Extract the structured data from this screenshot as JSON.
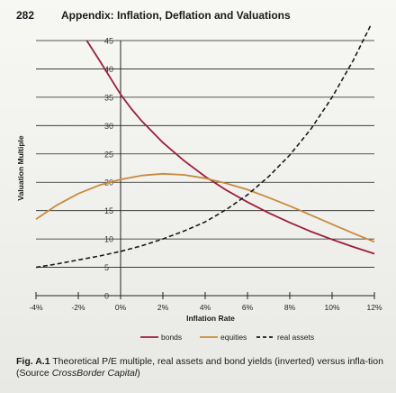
{
  "header": {
    "page_number": "282",
    "running_title": "Appendix: Inflation, Deflation and Valuations"
  },
  "caption": {
    "label": "Fig. A.1",
    "text": "Theoretical P/E multiple, real assets and bond yields (inverted) versus infla-tion (Source ",
    "source_name": "CrossBorder Capital",
    "close": ")"
  },
  "colors": {
    "bonds": "#9b1f3a",
    "equities": "#c98a3c",
    "real_assets": "#1a1a1a",
    "grid": "#222222"
  },
  "chart_data": {
    "type": "line",
    "xlabel": "Inflation Rate",
    "ylabel": "Valuation Multiple",
    "xlim": [
      -4,
      12
    ],
    "ylim": [
      0,
      45
    ],
    "x_ticks": [
      -4,
      -2,
      0,
      2,
      4,
      6,
      8,
      10,
      12
    ],
    "x_tick_labels": [
      "-4%",
      "-2%",
      "0%",
      "2%",
      "4%",
      "6%",
      "8%",
      "10%",
      "12%"
    ],
    "y_ticks": [
      0,
      5,
      10,
      15,
      20,
      25,
      30,
      35,
      40,
      45
    ],
    "y_tick_labels": [
      "0",
      "5",
      "10",
      "15",
      "20",
      "25",
      "30",
      "35",
      "40",
      "45"
    ],
    "grid": "horizontal",
    "legend_position": "bottom",
    "series": [
      {
        "name": "bonds",
        "style": "solid",
        "x": [
          -1.6,
          -1,
          -0.5,
          0,
          0.5,
          1,
          2,
          3,
          4,
          5,
          6,
          7,
          8,
          9,
          10,
          11,
          12
        ],
        "y": [
          45,
          41.5,
          38.5,
          35.5,
          33,
          30.8,
          27,
          23.8,
          21,
          18.6,
          16.5,
          14.6,
          12.9,
          11.3,
          9.9,
          8.6,
          7.4
        ]
      },
      {
        "name": "equities",
        "style": "solid",
        "x": [
          -4,
          -3,
          -2,
          -1,
          0,
          1,
          2,
          3,
          4,
          5,
          6,
          7,
          8,
          9,
          10,
          11,
          12
        ],
        "y": [
          13.5,
          16,
          18,
          19.5,
          20.5,
          21.2,
          21.5,
          21.3,
          20.7,
          19.8,
          18.7,
          17.3,
          15.8,
          14.2,
          12.6,
          11,
          9.5
        ]
      },
      {
        "name": "real assets",
        "style": "dashed",
        "x": [
          -4,
          -3,
          -2,
          -1,
          0,
          1,
          2,
          3,
          4,
          5,
          6,
          7,
          8,
          9,
          10,
          11,
          12
        ],
        "y": [
          5,
          5.6,
          6.3,
          7,
          7.8,
          8.8,
          10,
          11.4,
          13,
          15.2,
          17.8,
          21,
          24.8,
          29.4,
          35,
          41.5,
          49
        ]
      }
    ]
  }
}
